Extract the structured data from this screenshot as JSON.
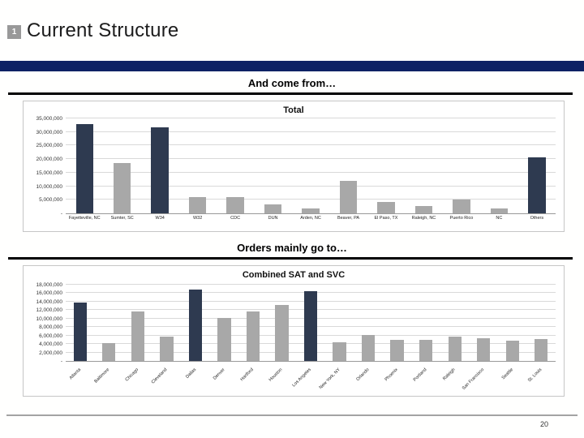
{
  "header": {
    "badge": "1",
    "title": "Current Structure"
  },
  "sections": [
    {
      "heading": "And come from…"
    },
    {
      "heading": "Orders mainly go to…"
    }
  ],
  "footer": {
    "page_number": "20"
  },
  "colors": {
    "accent_navy": "#0d2264",
    "bar_dark": "#2e3a50",
    "bar_gray": "#a8a8a8",
    "badge_gray": "#999999"
  },
  "chart_data": [
    {
      "type": "bar",
      "title": "Total",
      "categories": [
        "Fayetteville, NC",
        "Sumter, SC",
        "W34",
        "W32",
        "CDC",
        "DUN",
        "Arden, NC",
        "Beaver, PA",
        "El Paso, TX",
        "Raleigh, NC",
        "Puerto Rico",
        "NC",
        "Others"
      ],
      "values": [
        33000000,
        18500000,
        31700000,
        5900000,
        6100000,
        3200000,
        1800000,
        12100000,
        4300000,
        2600000,
        5100000,
        1900000,
        20700000
      ],
      "highlight_indices": [
        0,
        2,
        12
      ],
      "ylim": [
        0,
        35000000
      ],
      "yticks": [
        {
          "v": 35000000,
          "l": "35,000,000"
        },
        {
          "v": 30000000,
          "l": "30,000,000"
        },
        {
          "v": 25000000,
          "l": "25,000,000"
        },
        {
          "v": 20000000,
          "l": "20,000,000"
        },
        {
          "v": 15000000,
          "l": "15,000,000"
        },
        {
          "v": 10000000,
          "l": "10,000,000"
        },
        {
          "v": 5000000,
          "l": "5,000,000"
        },
        {
          "v": 0,
          "l": "-"
        }
      ],
      "grid": true,
      "legend": false,
      "rotated_labels": false,
      "xlabel": "",
      "ylabel": ""
    },
    {
      "type": "bar",
      "title": "Combined SAT and SVC",
      "categories": [
        "Atlanta",
        "Baltimore",
        "Chicago",
        "Cleveland",
        "Dallas",
        "Denver",
        "Hartford",
        "Houston",
        "Los Angeles",
        "New York, NY",
        "Orlando",
        "Phoenix",
        "Portland",
        "Raleigh",
        "San Francisco",
        "Seattle",
        "St. Louis"
      ],
      "values": [
        13800000,
        4300000,
        11700000,
        5800000,
        16800000,
        10200000,
        11700000,
        13200000,
        16400000,
        4500000,
        6100000,
        5000000,
        5000000,
        5800000,
        5400000,
        4700000,
        5200000
      ],
      "highlight_indices": [
        0,
        4,
        8
      ],
      "ylim": [
        0,
        18000000
      ],
      "yticks": [
        {
          "v": 18000000,
          "l": "18,000,000"
        },
        {
          "v": 16000000,
          "l": "16,000,000"
        },
        {
          "v": 14000000,
          "l": "14,000,000"
        },
        {
          "v": 12000000,
          "l": "12,000,000"
        },
        {
          "v": 10000000,
          "l": "10,000,000"
        },
        {
          "v": 8000000,
          "l": "8,000,000"
        },
        {
          "v": 6000000,
          "l": "6,000,000"
        },
        {
          "v": 4000000,
          "l": "4,000,000"
        },
        {
          "v": 2000000,
          "l": "2,000,000"
        },
        {
          "v": 0,
          "l": "-"
        }
      ],
      "grid": true,
      "legend": false,
      "rotated_labels": true,
      "xlabel": "",
      "ylabel": ""
    }
  ]
}
